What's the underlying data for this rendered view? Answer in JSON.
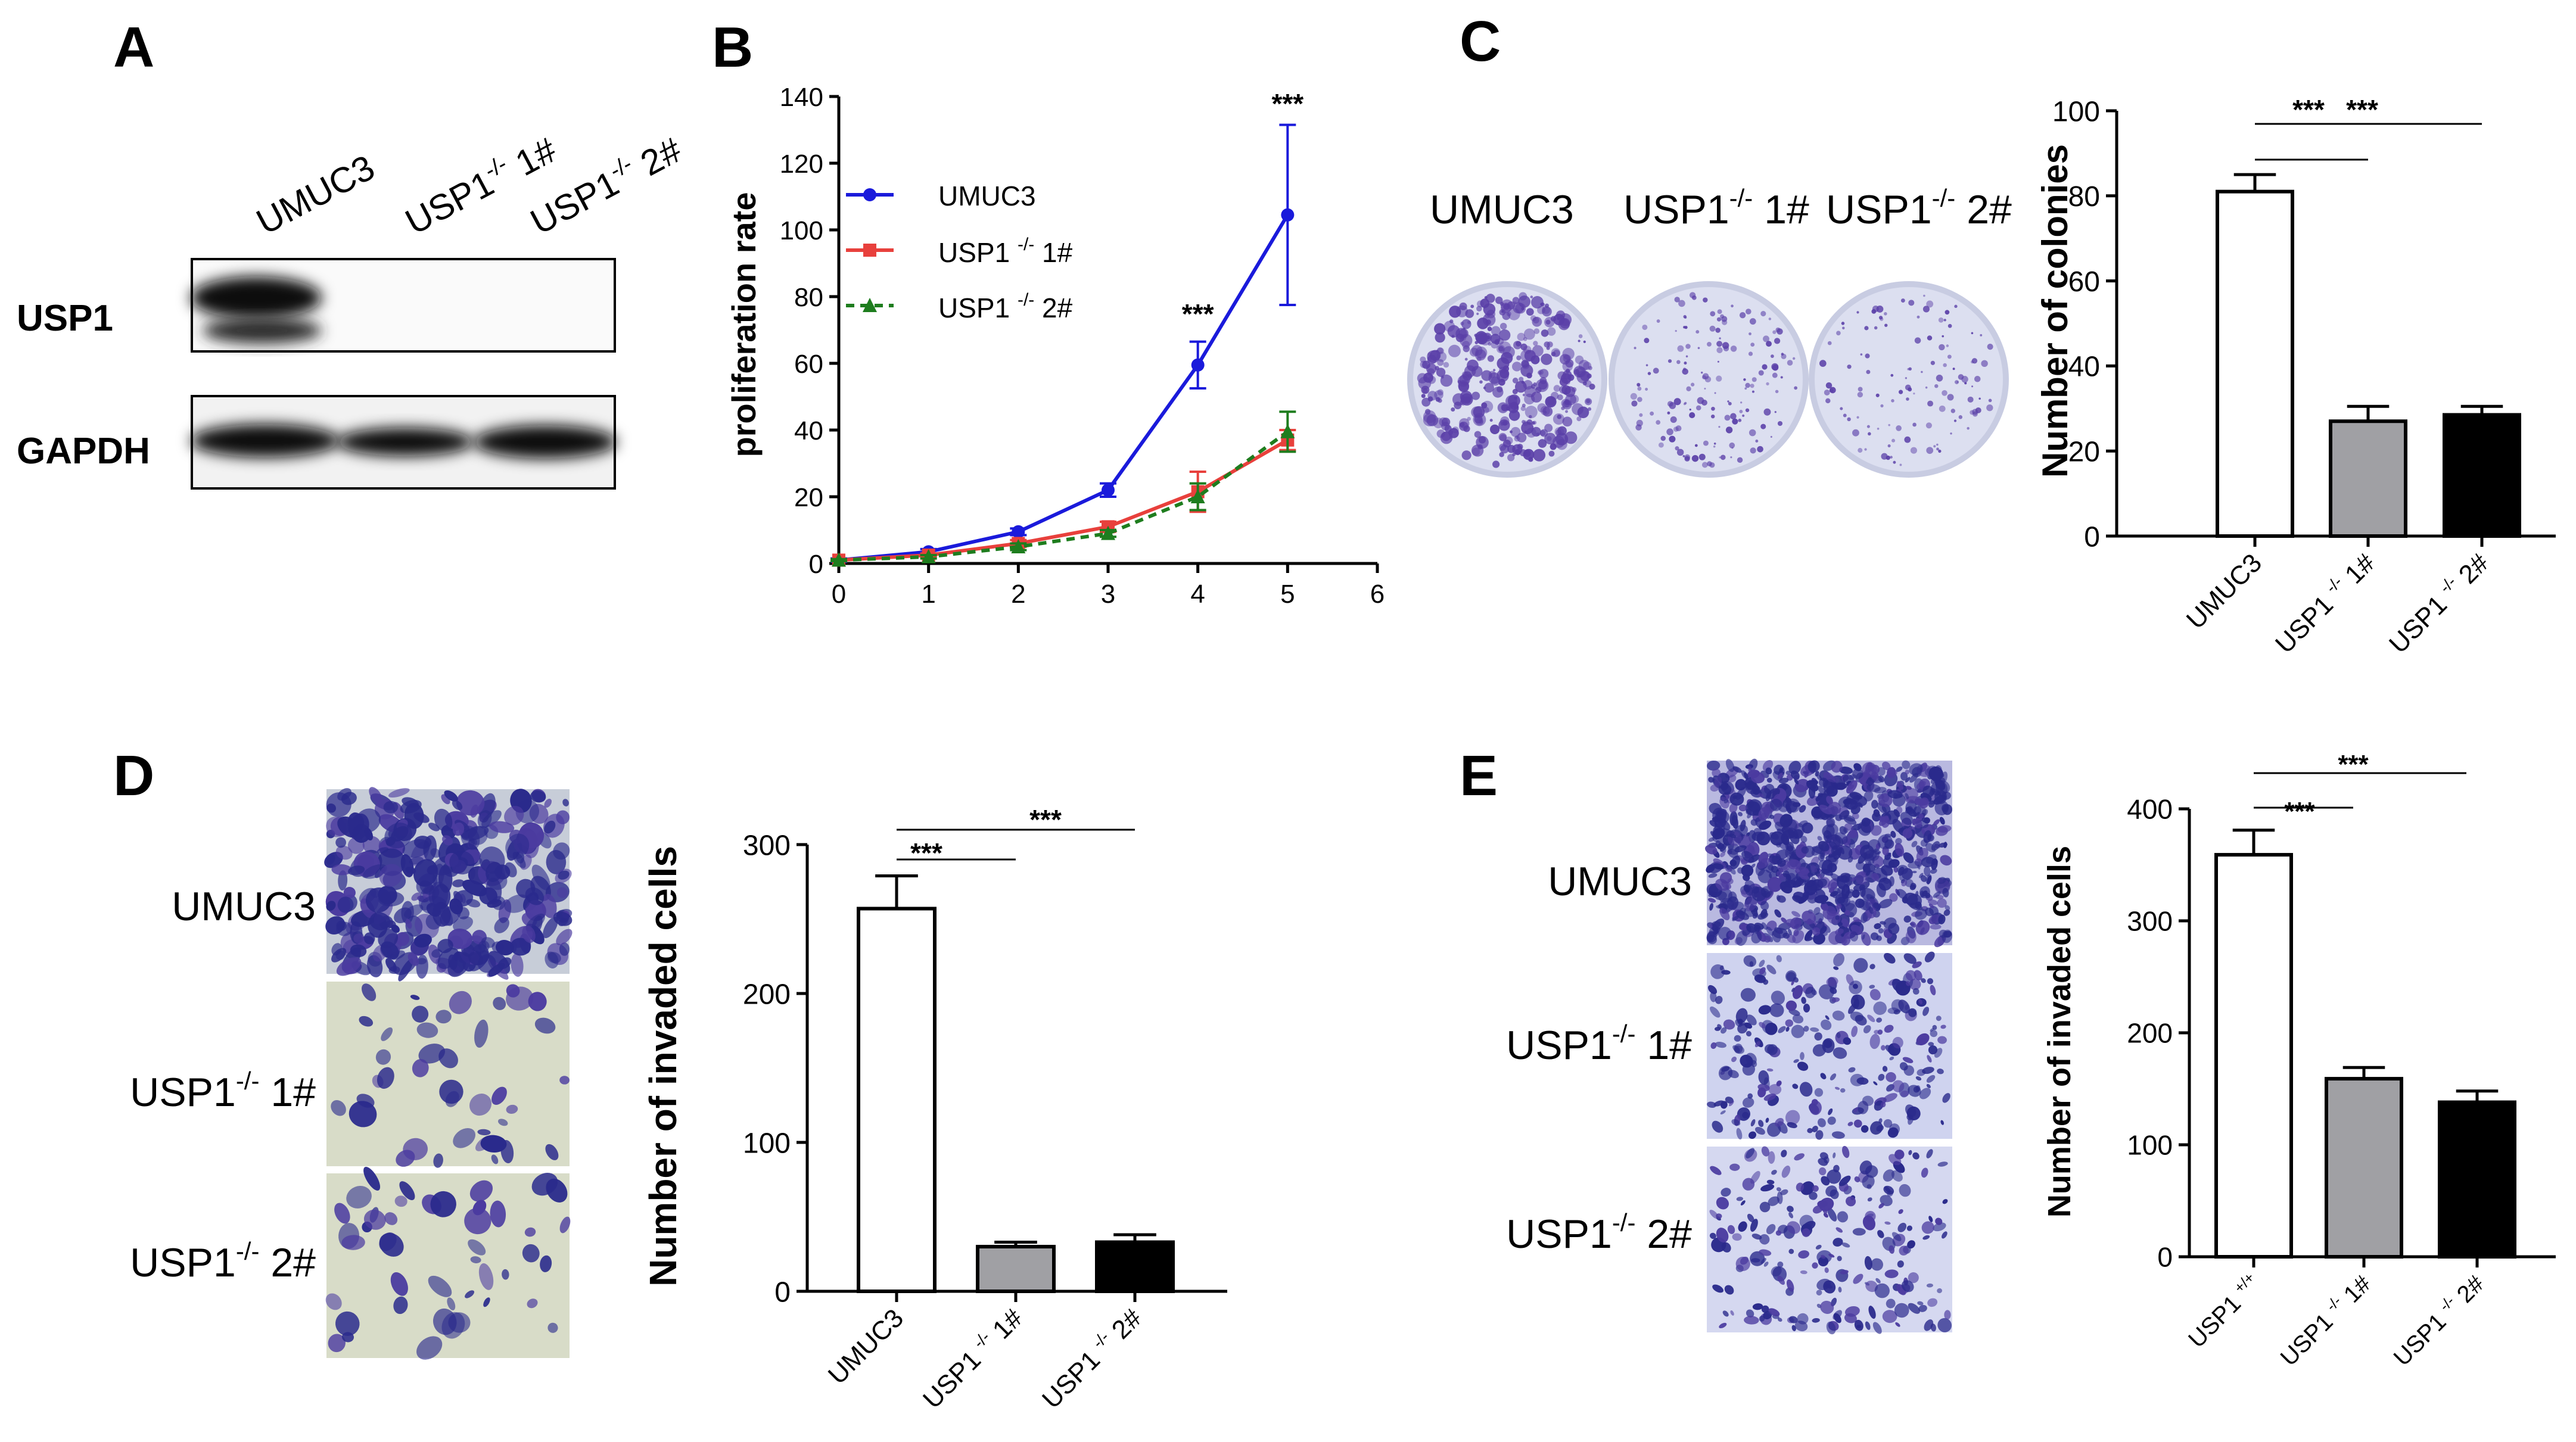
{
  "panels": {
    "A": {
      "letter": "A",
      "lanes": [
        "UMUC3",
        "USP1",
        "-/-",
        "1#",
        "USP1",
        "-/-",
        "2#"
      ],
      "rows": [
        "USP1",
        "GAPDH"
      ]
    },
    "B": {
      "letter": "B",
      "legend": [
        {
          "pre": "UMUC3",
          "sup": "",
          "post": ""
        },
        {
          "pre": "USP1 ",
          "sup": "-/-",
          "post": " 1#"
        },
        {
          "pre": "USP1 ",
          "sup": "-/-",
          "post": " 2#"
        }
      ],
      "annotations": [
        "***",
        "***"
      ]
    },
    "C": {
      "letter": "C",
      "dish_labels": [
        {
          "pre": "UMUC3",
          "sup": "",
          "post": ""
        },
        {
          "pre": "USP1",
          "sup": "-/-",
          "post": " 1#"
        },
        {
          "pre": "USP1",
          "sup": "-/-",
          "post": " 2#"
        }
      ],
      "sig": [
        "***",
        "***"
      ]
    },
    "D": {
      "letter": "D",
      "image_labels": [
        {
          "pre": "UMUC3",
          "sup": "",
          "post": ""
        },
        {
          "pre": "USP1",
          "sup": "-/-",
          "post": " 1#"
        },
        {
          "pre": "USP1",
          "sup": "-/-",
          "post": " 2#"
        }
      ],
      "sig": [
        "***",
        "***"
      ]
    },
    "E": {
      "letter": "E",
      "image_labels": [
        {
          "pre": "UMUC3",
          "sup": "",
          "post": ""
        },
        {
          "pre": "USP1",
          "sup": "-/-",
          "post": " 1#"
        },
        {
          "pre": "USP1",
          "sup": "-/-",
          "post": " 2#"
        }
      ],
      "sig": [
        "***",
        "***"
      ]
    }
  },
  "colors": {
    "umuc3": "#1a1adb",
    "ko1": "#e8403c",
    "ko2": "#1e7d1e",
    "bar_white": "#ffffff",
    "bar_grey": "#a0a0a4",
    "bar_black": "#000000",
    "crystal_violet": "#5a3fa8",
    "dish_bg": "#dcdff0",
    "cell_bg": "#d8dcc8"
  },
  "chart_data": [
    {
      "id": "B",
      "type": "line",
      "title": "",
      "xlabel": "",
      "ylabel": "proliferation rate",
      "xlim": [
        0,
        6
      ],
      "ylim": [
        0,
        140
      ],
      "xticks": [
        0,
        1,
        2,
        3,
        4,
        5,
        6
      ],
      "yticks": [
        0,
        20,
        40,
        60,
        80,
        100,
        120,
        140
      ],
      "legend_position": "upper-left",
      "series": [
        {
          "name": "UMUC3",
          "x": [
            0,
            1,
            2,
            3,
            4,
            5
          ],
          "values": [
            1,
            3.5,
            9.5,
            22,
            59.5,
            104.5
          ],
          "errors": [
            0.5,
            0.8,
            1,
            2,
            7,
            27
          ],
          "marker": "circle",
          "dash": "solid"
        },
        {
          "name": "USP1 -/- 1#",
          "x": [
            0,
            1,
            2,
            3,
            4,
            5
          ],
          "values": [
            1,
            2.5,
            6,
            11,
            21.5,
            37
          ],
          "errors": [
            0.3,
            0.5,
            1,
            1.5,
            6,
            3
          ],
          "marker": "square",
          "dash": "solid"
        },
        {
          "name": "USP1 -/- 2#",
          "x": [
            0,
            1,
            2,
            3,
            4,
            5
          ],
          "values": [
            1,
            2,
            5,
            9,
            20,
            39.5
          ],
          "errors": [
            0.3,
            0.5,
            1,
            1,
            4,
            6
          ],
          "marker": "triangle",
          "dash": "dashed"
        }
      ],
      "annotations": [
        {
          "x": 4,
          "y": 72,
          "text": "***"
        },
        {
          "x": 5,
          "y": 135,
          "text": "***"
        }
      ]
    },
    {
      "id": "C",
      "type": "bar",
      "ylabel": "Number of colonies",
      "ylim": [
        0,
        100
      ],
      "yticks": [
        0,
        20,
        40,
        60,
        80,
        100
      ],
      "categories": [
        {
          "pre": "UMUC3",
          "sup": "",
          "post": ""
        },
        {
          "pre": "USP1 ",
          "sup": "-/-",
          "post": " 1#"
        },
        {
          "pre": "USP1 ",
          "sup": "-/-",
          "post": " 2#"
        }
      ],
      "values": [
        81,
        27,
        28.5
      ],
      "errors": [
        4,
        3.5,
        2
      ]
    },
    {
      "id": "D",
      "type": "bar",
      "ylabel": "Number of invaded cells",
      "ylim": [
        0,
        300
      ],
      "yticks": [
        0,
        100,
        200,
        300
      ],
      "categories": [
        {
          "pre": "UMUC3",
          "sup": "",
          "post": ""
        },
        {
          "pre": "USP1 ",
          "sup": "-/-",
          "post": " 1#"
        },
        {
          "pre": "USP1 ",
          "sup": "-/-",
          "post": " 2#"
        }
      ],
      "values": [
        257,
        30,
        33
      ],
      "errors": [
        22,
        3,
        5
      ]
    },
    {
      "id": "E",
      "type": "bar",
      "ylabel": "Number of invaded cells",
      "ylim": [
        0,
        400
      ],
      "yticks": [
        0,
        100,
        200,
        300,
        400
      ],
      "categories": [
        {
          "pre": "USP1 ",
          "sup": "+/+",
          "post": ""
        },
        {
          "pre": "USP1 ",
          "sup": "-/-",
          "post": " 1#"
        },
        {
          "pre": "USP1 ",
          "sup": "-/-",
          "post": " 2#"
        }
      ],
      "values": [
        359,
        159,
        138
      ],
      "errors": [
        22,
        10,
        10
      ]
    }
  ]
}
